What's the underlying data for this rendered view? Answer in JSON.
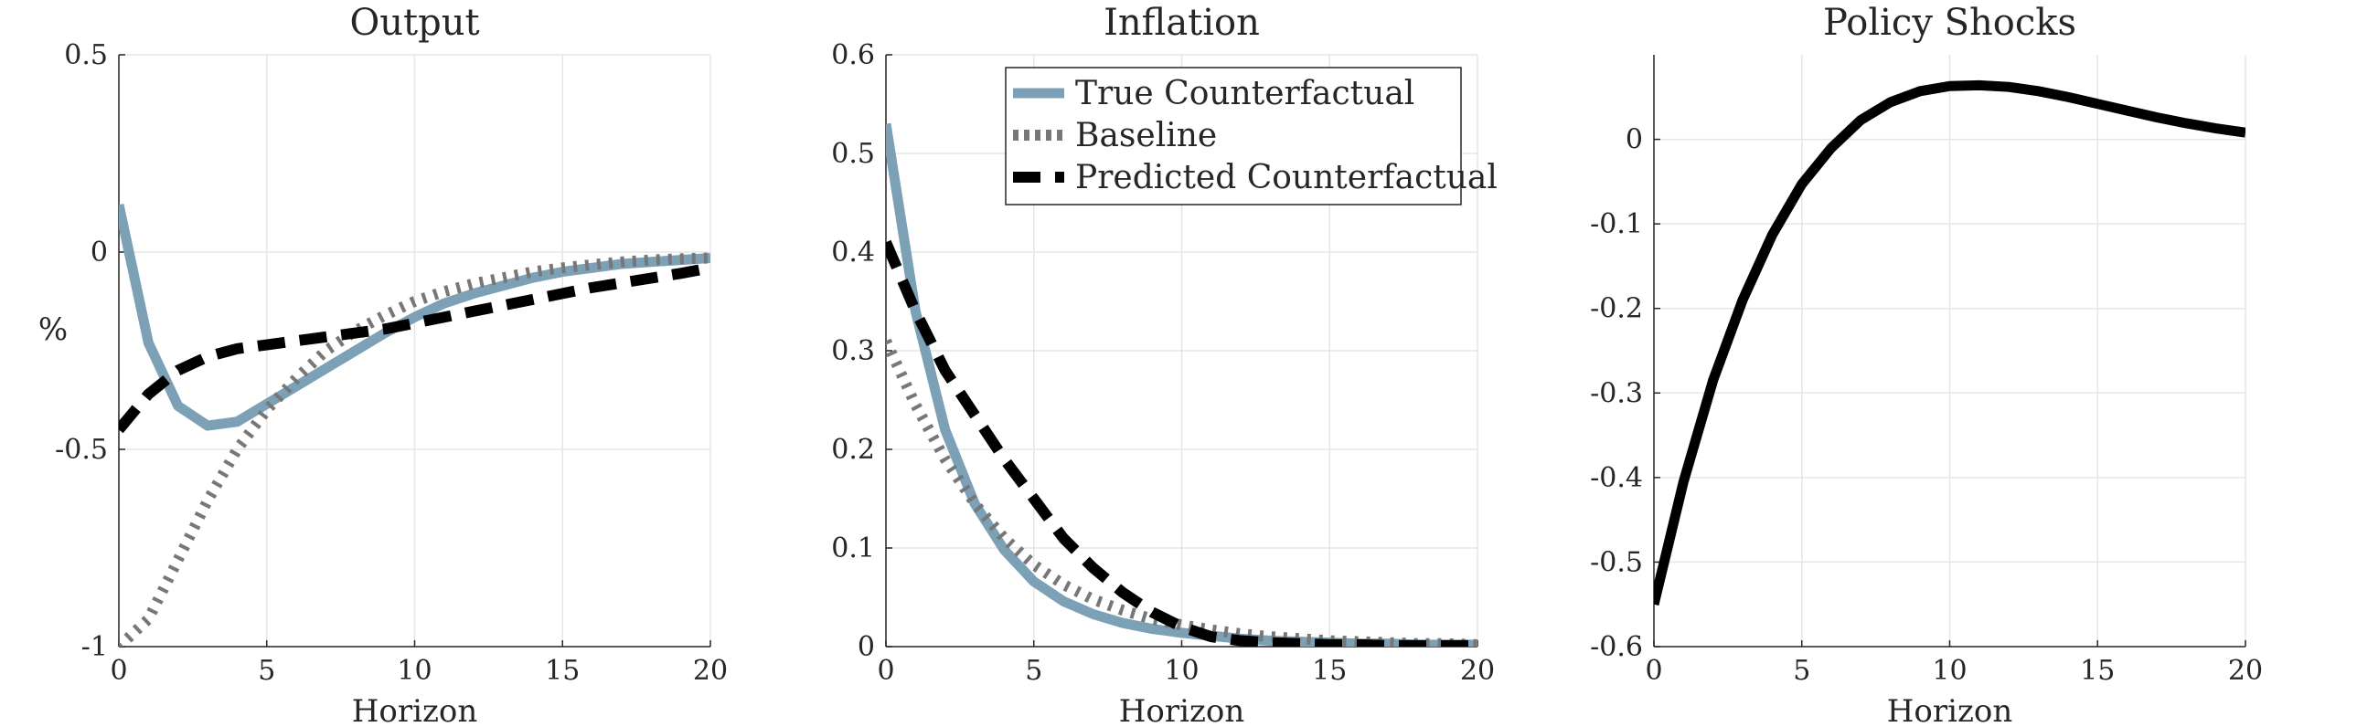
{
  "figure": {
    "legend_entries": [
      "True Counterfactual",
      "Baseline",
      "Predicted Counterfactual"
    ]
  },
  "chart_data": [
    {
      "type": "line",
      "title": "Output",
      "xlabel": "Horizon",
      "ylabel": "%",
      "xlim": [
        0,
        20
      ],
      "ylim": [
        -1,
        0.5
      ],
      "xticks": [
        0,
        5,
        10,
        15,
        20
      ],
      "xtick_labels": [
        "0",
        "5",
        "10",
        "15",
        "20"
      ],
      "yticks": [
        -1,
        -0.5,
        0,
        0.5
      ],
      "ytick_labels": [
        "-1",
        "-0.5",
        "0",
        "0.5"
      ],
      "grid": true,
      "series": [
        {
          "name": "True Counterfactual",
          "color": "#7ca1b6",
          "style": "solid",
          "x": [
            0,
            1,
            2,
            3,
            4,
            5,
            6,
            7,
            8,
            9,
            10,
            11,
            12,
            13,
            14,
            15,
            16,
            17,
            18,
            19,
            20
          ],
          "y": [
            0.12,
            -0.23,
            -0.39,
            -0.44,
            -0.43,
            -0.385,
            -0.34,
            -0.295,
            -0.25,
            -0.205,
            -0.165,
            -0.13,
            -0.105,
            -0.085,
            -0.065,
            -0.05,
            -0.04,
            -0.03,
            -0.025,
            -0.02,
            -0.015
          ]
        },
        {
          "name": "Baseline",
          "color": "#777777",
          "style": "dotted",
          "x": [
            0,
            1,
            2,
            3,
            4,
            5,
            6,
            7,
            8,
            9,
            10,
            11,
            12,
            13,
            14,
            15,
            16,
            17,
            18,
            19,
            20
          ],
          "y": [
            -1.0,
            -0.93,
            -0.78,
            -0.63,
            -0.5,
            -0.4,
            -0.32,
            -0.25,
            -0.2,
            -0.16,
            -0.125,
            -0.1,
            -0.08,
            -0.065,
            -0.05,
            -0.04,
            -0.032,
            -0.025,
            -0.02,
            -0.017,
            -0.015
          ]
        },
        {
          "name": "Predicted Counterfactual",
          "color": "#000000",
          "style": "dashed",
          "x": [
            0,
            1,
            2,
            3,
            4,
            5,
            6,
            7,
            8,
            9,
            10,
            11,
            12,
            13,
            14,
            15,
            16,
            17,
            18,
            19,
            20
          ],
          "y": [
            -0.45,
            -0.36,
            -0.3,
            -0.265,
            -0.245,
            -0.235,
            -0.225,
            -0.215,
            -0.205,
            -0.195,
            -0.18,
            -0.165,
            -0.15,
            -0.135,
            -0.12,
            -0.105,
            -0.09,
            -0.078,
            -0.066,
            -0.054,
            -0.04
          ]
        }
      ]
    },
    {
      "type": "line",
      "title": "Inflation",
      "xlabel": "Horizon",
      "ylabel": "",
      "xlim": [
        0,
        20
      ],
      "ylim": [
        0,
        0.6
      ],
      "xticks": [
        0,
        5,
        10,
        15,
        20
      ],
      "xtick_labels": [
        "0",
        "5",
        "10",
        "15",
        "20"
      ],
      "yticks": [
        0,
        0.1,
        0.2,
        0.3,
        0.4,
        0.5,
        0.6
      ],
      "ytick_labels": [
        "0",
        "0.1",
        "0.2",
        "0.3",
        "0.4",
        "0.5",
        "0.6"
      ],
      "grid": true,
      "legend": "top-right",
      "series": [
        {
          "name": "True Counterfactual",
          "color": "#7ca1b6",
          "style": "solid",
          "x": [
            0,
            1,
            2,
            3,
            4,
            5,
            6,
            7,
            8,
            9,
            10,
            11,
            12,
            13,
            14,
            15,
            16,
            17,
            18,
            19,
            20
          ],
          "y": [
            0.53,
            0.34,
            0.22,
            0.145,
            0.098,
            0.066,
            0.046,
            0.033,
            0.024,
            0.018,
            0.014,
            0.011,
            0.008,
            0.006,
            0.005,
            0.004,
            0.003,
            0.003,
            0.002,
            0.002,
            0.002
          ]
        },
        {
          "name": "Baseline",
          "color": "#777777",
          "style": "dotted",
          "x": [
            0,
            1,
            2,
            3,
            4,
            5,
            6,
            7,
            8,
            9,
            10,
            11,
            12,
            13,
            14,
            15,
            16,
            17,
            18,
            19,
            20
          ],
          "y": [
            0.31,
            0.245,
            0.19,
            0.145,
            0.11,
            0.083,
            0.063,
            0.048,
            0.037,
            0.028,
            0.022,
            0.017,
            0.013,
            0.01,
            0.008,
            0.006,
            0.005,
            0.004,
            0.003,
            0.003,
            0.002
          ]
        },
        {
          "name": "Predicted Counterfactual",
          "color": "#000000",
          "style": "dashed",
          "x": [
            0,
            1,
            2,
            3,
            4,
            5,
            6,
            7,
            8,
            9,
            10,
            11,
            12,
            13,
            14,
            15,
            16,
            17,
            18,
            19,
            20
          ],
          "y": [
            0.41,
            0.34,
            0.28,
            0.235,
            0.19,
            0.15,
            0.11,
            0.08,
            0.055,
            0.035,
            0.02,
            0.01,
            0.006,
            0.004,
            0.003,
            0.002,
            0.002,
            0.001,
            0.001,
            0.001,
            0.001
          ]
        }
      ]
    },
    {
      "type": "line",
      "title": "Policy Shocks",
      "xlabel": "Horizon",
      "ylabel": "",
      "xlim": [
        0,
        20
      ],
      "ylim": [
        -0.6,
        0.1
      ],
      "xticks": [
        0,
        5,
        10,
        15,
        20
      ],
      "xtick_labels": [
        "0",
        "5",
        "10",
        "15",
        "20"
      ],
      "yticks": [
        -0.6,
        -0.5,
        -0.4,
        -0.3,
        -0.2,
        -0.1,
        0
      ],
      "ytick_labels": [
        "-0.6",
        "-0.5",
        "-0.4",
        "-0.3",
        "-0.2",
        "-0.1",
        "0"
      ],
      "grid": true,
      "series": [
        {
          "name": "",
          "color": "#000000",
          "style": "solid",
          "x": [
            0,
            1,
            2,
            3,
            4,
            5,
            6,
            7,
            8,
            9,
            10,
            11,
            12,
            13,
            14,
            15,
            16,
            17,
            18,
            19,
            20
          ],
          "y": [
            -0.55,
            -0.405,
            -0.285,
            -0.19,
            -0.113,
            -0.053,
            -0.01,
            0.023,
            0.044,
            0.057,
            0.063,
            0.064,
            0.062,
            0.057,
            0.05,
            0.042,
            0.034,
            0.026,
            0.019,
            0.013,
            0.008
          ]
        }
      ]
    }
  ]
}
